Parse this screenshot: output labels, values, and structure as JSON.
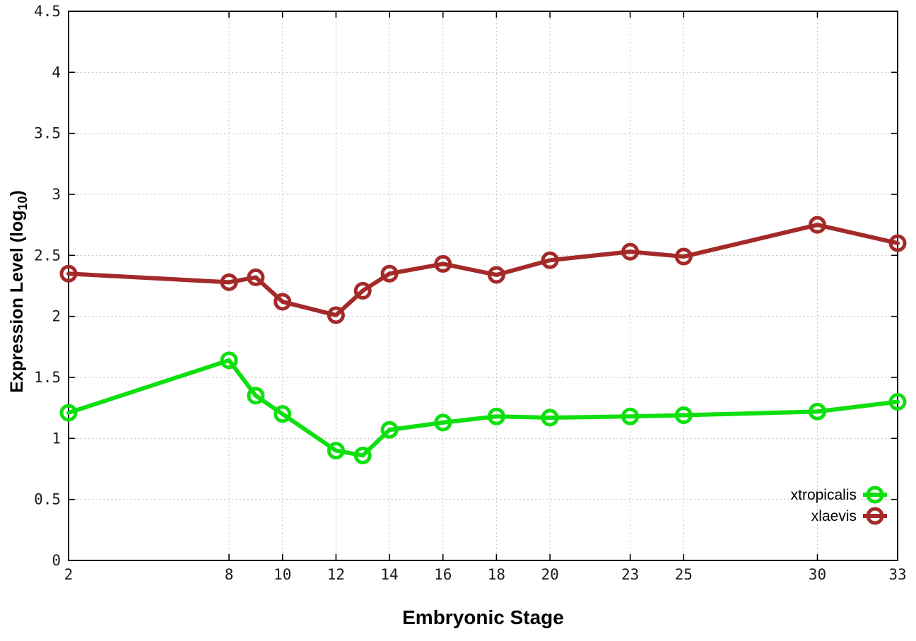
{
  "style": {
    "background": "#ffffff",
    "grid_color": "#bdbdbd",
    "axis_color": "#000000",
    "tick_label_color": "#1c1c1c"
  },
  "chart_data": {
    "type": "line",
    "title": "",
    "xlabel": "Embryonic Stage",
    "ylabel": {
      "text": "Expression Level (log",
      "sub": "10",
      "suffix": ")"
    },
    "xlim": [
      2,
      33
    ],
    "ylim": [
      0,
      4.5
    ],
    "xticks": [
      2,
      8,
      10,
      12,
      14,
      16,
      18,
      20,
      23,
      25,
      30,
      33
    ],
    "yticks": [
      0,
      0.5,
      1,
      1.5,
      2,
      2.5,
      3,
      3.5,
      4,
      4.5
    ],
    "grid": true,
    "legend_position": "inside-bottom-right",
    "x": [
      2,
      8,
      9,
      10,
      12,
      13,
      14,
      16,
      18,
      20,
      23,
      25,
      30,
      33
    ],
    "series": [
      {
        "name": "xtropicalis",
        "color": "#0fdf0f",
        "marker": "open-circle",
        "values": [
          1.21,
          1.64,
          1.35,
          1.2,
          0.9,
          0.86,
          1.07,
          1.13,
          1.18,
          1.17,
          1.18,
          1.19,
          1.22,
          1.3
        ]
      },
      {
        "name": "xlaevis",
        "color": "#a42a2a",
        "marker": "open-circle",
        "values": [
          2.35,
          2.28,
          2.32,
          2.12,
          2.01,
          2.21,
          2.35,
          2.43,
          2.34,
          2.46,
          2.53,
          2.49,
          2.75,
          2.6
        ]
      }
    ]
  }
}
